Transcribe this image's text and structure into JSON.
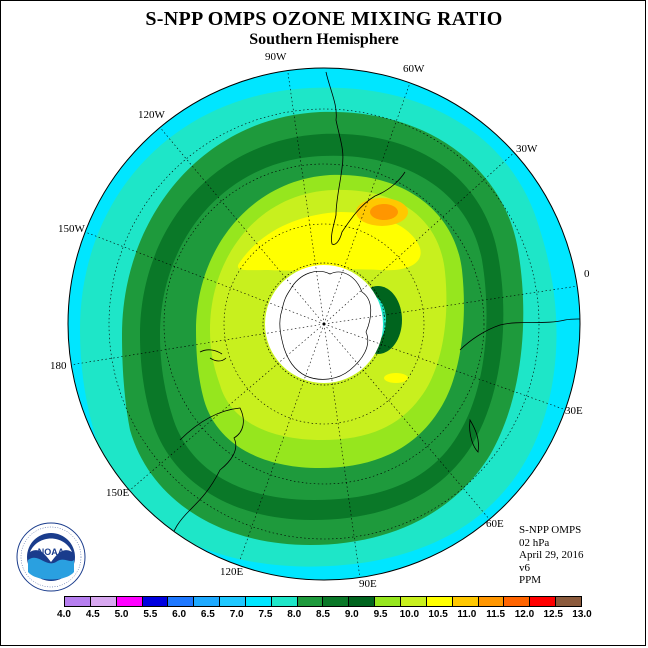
{
  "title": "S-NPP OMPS OZONE MIXING RATIO",
  "subtitle": "Southern Hemisphere",
  "longitude_labels": [
    {
      "key": "90w",
      "text": "90W"
    },
    {
      "key": "60w",
      "text": "60W"
    },
    {
      "key": "30w",
      "text": "30W"
    },
    {
      "key": "0",
      "text": "0"
    },
    {
      "key": "30e",
      "text": "30E"
    },
    {
      "key": "60e",
      "text": "60E"
    },
    {
      "key": "90e",
      "text": "90E"
    },
    {
      "key": "120e",
      "text": "120E"
    },
    {
      "key": "150e",
      "text": "150E"
    },
    {
      "key": "180",
      "text": "180"
    },
    {
      "key": "150w",
      "text": "150W"
    },
    {
      "key": "120w",
      "text": "120W"
    }
  ],
  "info": {
    "instrument": "S-NPP OMPS",
    "pressure": "02 hPa",
    "date": "April 29, 2016",
    "version": "v6",
    "units": "PPM"
  },
  "colorbar": {
    "ticks": [
      "4.0",
      "4.5",
      "5.0",
      "5.5",
      "6.0",
      "6.5",
      "7.0",
      "7.5",
      "8.0",
      "8.5",
      "9.0",
      "9.5",
      "10.0",
      "10.5",
      "11.0",
      "11.5",
      "12.0",
      "12.5",
      "13.0"
    ],
    "colors": [
      "#b77ff0",
      "#d8a8f0",
      "#ff00ff",
      "#0000e0",
      "#1e78ff",
      "#1eaaff",
      "#1ec8ff",
      "#00e6ff",
      "#1ee6c8",
      "#1e9a3c",
      "#0a7828",
      "#00641e",
      "#96e61e",
      "#c8f01e",
      "#ffff00",
      "#ffc800",
      "#ff9600",
      "#ff6400",
      "#ff0000",
      "#8b5a3c"
    ]
  },
  "logo": {
    "name": "NOAA",
    "ring_text": "NATIONAL OCEANIC AND ATMOSPHERIC ADMINISTRATION"
  }
}
